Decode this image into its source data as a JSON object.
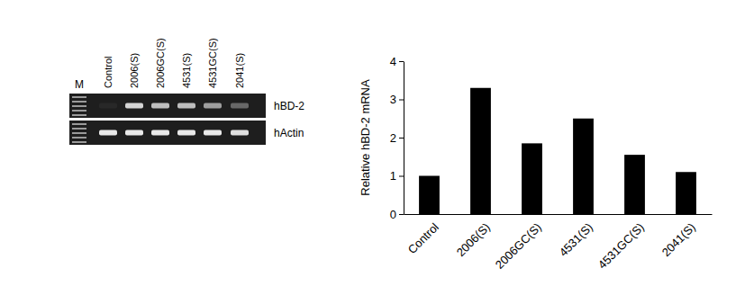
{
  "chart_data": {
    "type": "bar",
    "categories": [
      "Control",
      "2006(S)",
      "2006GC(S)",
      "4531(S)",
      "4531GC(S)",
      "2041(S)"
    ],
    "values": [
      1.0,
      3.3,
      1.85,
      2.5,
      1.55,
      1.1
    ],
    "color": "#000000",
    "ylabel": "Relative hBD-2 mRNA",
    "ylim": [
      0,
      4
    ],
    "yticks": [
      0,
      1,
      2,
      3,
      4
    ],
    "grid": false
  },
  "gel": {
    "marker_label": "M",
    "lanes": [
      "Control",
      "2006(S)",
      "2006GC(S)",
      "4531(S)",
      "4531GC(S)",
      "2041(S)"
    ],
    "rows": [
      "hBD-2",
      "hActin"
    ],
    "band_intensity": [
      [
        0.05,
        0.85,
        0.75,
        0.75,
        0.6,
        0.35
      ],
      [
        0.95,
        0.95,
        0.95,
        0.95,
        0.95,
        0.9
      ]
    ]
  }
}
